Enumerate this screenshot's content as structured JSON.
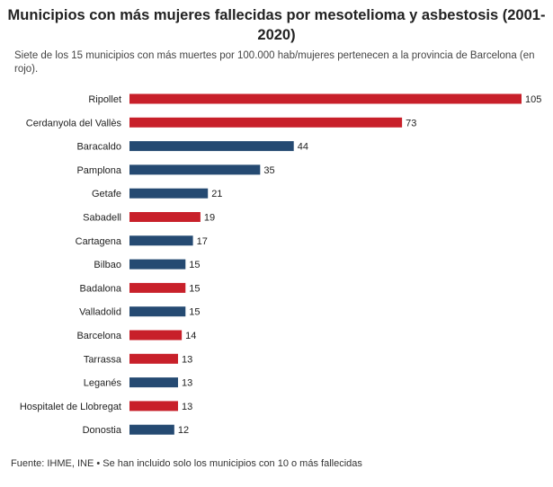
{
  "title": "Municipios con más mujeres fallecidas por mesotelioma y asbestosis (2001-2020)",
  "subtitle": "Siete de los 15 municipios con más muertes por 100.000 hab/mujeres pertenecen a la provincia de Barcelona (en rojo).",
  "footer": "Fuente: IHME, INE • Se han incluido solo los municipios con 10 o más fallecidas",
  "colors": {
    "barcelona": "#c8202a",
    "other": "#254a72"
  },
  "chart_data": {
    "type": "bar",
    "orientation": "horizontal",
    "title": "Municipios con más mujeres fallecidas por mesotelioma y asbestosis (2001-2020)",
    "categories": [
      "Ripollet",
      "Cerdanyola del Vallès",
      "Baracaldo",
      "Pamplona",
      "Getafe",
      "Sabadell",
      "Cartagena",
      "Bilbao",
      "Badalona",
      "Valladolid",
      "Barcelona",
      "Tarrassa",
      "Leganés",
      "Hospitalet de Llobregat",
      "Donostia"
    ],
    "values": [
      105,
      73,
      44,
      35,
      21,
      19,
      17,
      15,
      15,
      15,
      14,
      13,
      13,
      13,
      12
    ],
    "barcelona_province": [
      true,
      true,
      false,
      false,
      false,
      true,
      false,
      false,
      true,
      false,
      true,
      true,
      false,
      true,
      false
    ],
    "xlim": [
      0,
      105
    ],
    "grid": false,
    "data_labels": true
  }
}
